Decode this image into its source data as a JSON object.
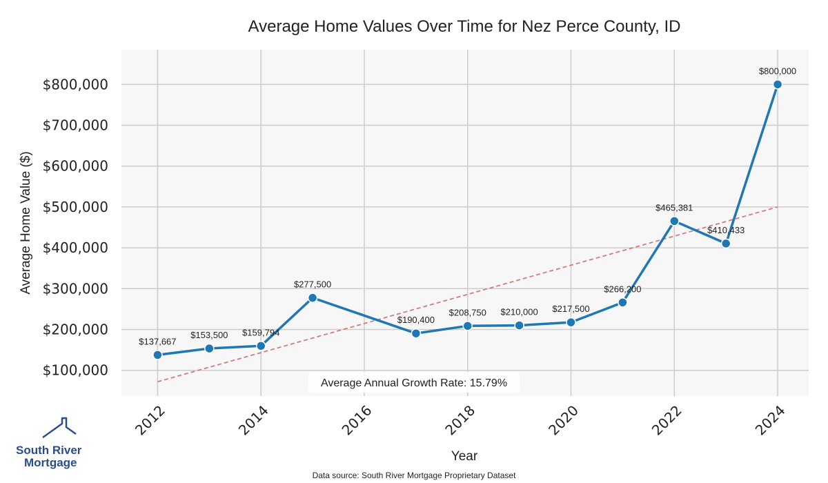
{
  "chart_data": {
    "type": "line",
    "title": "Average Home Values Over Time for Nez Perce County, ID",
    "xlabel": "Year",
    "ylabel": "Average Home Value ($)",
    "xlim": [
      2011.3,
      2024.6
    ],
    "ylim": [
      37000,
      885000
    ],
    "x_ticks": [
      2012,
      2014,
      2016,
      2018,
      2020,
      2022,
      2024
    ],
    "x_tick_labels": [
      "2012",
      "2014",
      "2016",
      "2018",
      "2020",
      "2022",
      "2024"
    ],
    "y_ticks": [
      100000,
      200000,
      300000,
      400000,
      500000,
      600000,
      700000,
      800000
    ],
    "y_tick_labels": [
      "$100,000",
      "$200,000",
      "$300,000",
      "$400,000",
      "$500,000",
      "$600,000",
      "$700,000",
      "$800,000"
    ],
    "grid": true,
    "series": [
      {
        "color": "#1f77b4",
        "x": [
          2012,
          2013,
          2014,
          2015,
          2017,
          2018,
          2019,
          2020,
          2021,
          2022,
          2023,
          2024
        ],
        "values": [
          137667,
          153500,
          159794,
          277500,
          190400,
          208750,
          210000,
          217500,
          266200,
          465381,
          410433,
          800000
        ],
        "labels": [
          "$137,667",
          "$153,500",
          "$159,794",
          "$277,500",
          "$190,400",
          "$208,750",
          "$210,000",
          "$217,500",
          "$266,200",
          "$465,381",
          "$410,433",
          "$800,000"
        ]
      }
    ],
    "trendline": {
      "color": "#d47a7a",
      "style": "dashed",
      "x": [
        2012,
        2024
      ],
      "values": [
        72000,
        500000
      ]
    },
    "annotation": "Average Annual Growth Rate: 15.79%",
    "source": "Data source: South River Mortgage Proprietary Dataset",
    "colors": {
      "plot_bg": "#f7f7f7",
      "grid": "#cccccc",
      "line": "#1f77b4",
      "trend": "#d47a7a"
    }
  },
  "logo": {
    "line1": "South River",
    "line2": "Mortgage",
    "color": "#2b4c8c",
    "icon": "house-roof-icon"
  }
}
